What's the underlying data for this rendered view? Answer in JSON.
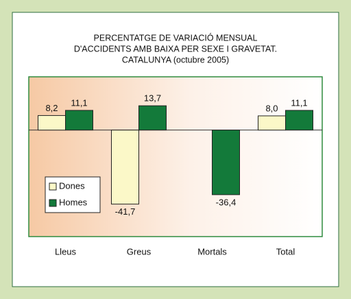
{
  "chart_data": {
    "type": "bar",
    "title": [
      "PERCENTATGE DE VARIACIÓ MENSUAL",
      "D'ACCIDENTS AMB BAIXA PER SEXE I GRAVETAT.",
      "CATALUNYA (octubre 2005)"
    ],
    "categories": [
      "Lleus",
      "Greus",
      "Mortals",
      "Total"
    ],
    "series": [
      {
        "name": "Dones",
        "color": "#fbf8c8",
        "values": [
          8.2,
          -41.7,
          null,
          8.0
        ],
        "value_labels": [
          "8,2",
          "-41,7",
          null,
          "8,0"
        ]
      },
      {
        "name": "Homes",
        "color": "#137a3a",
        "values": [
          11.1,
          13.7,
          -36.4,
          11.1
        ],
        "value_labels": [
          "11,1",
          "13,7",
          "-36,4",
          "11,1"
        ]
      }
    ],
    "ylim": [
      -60,
      30
    ],
    "legend": "lower left"
  }
}
